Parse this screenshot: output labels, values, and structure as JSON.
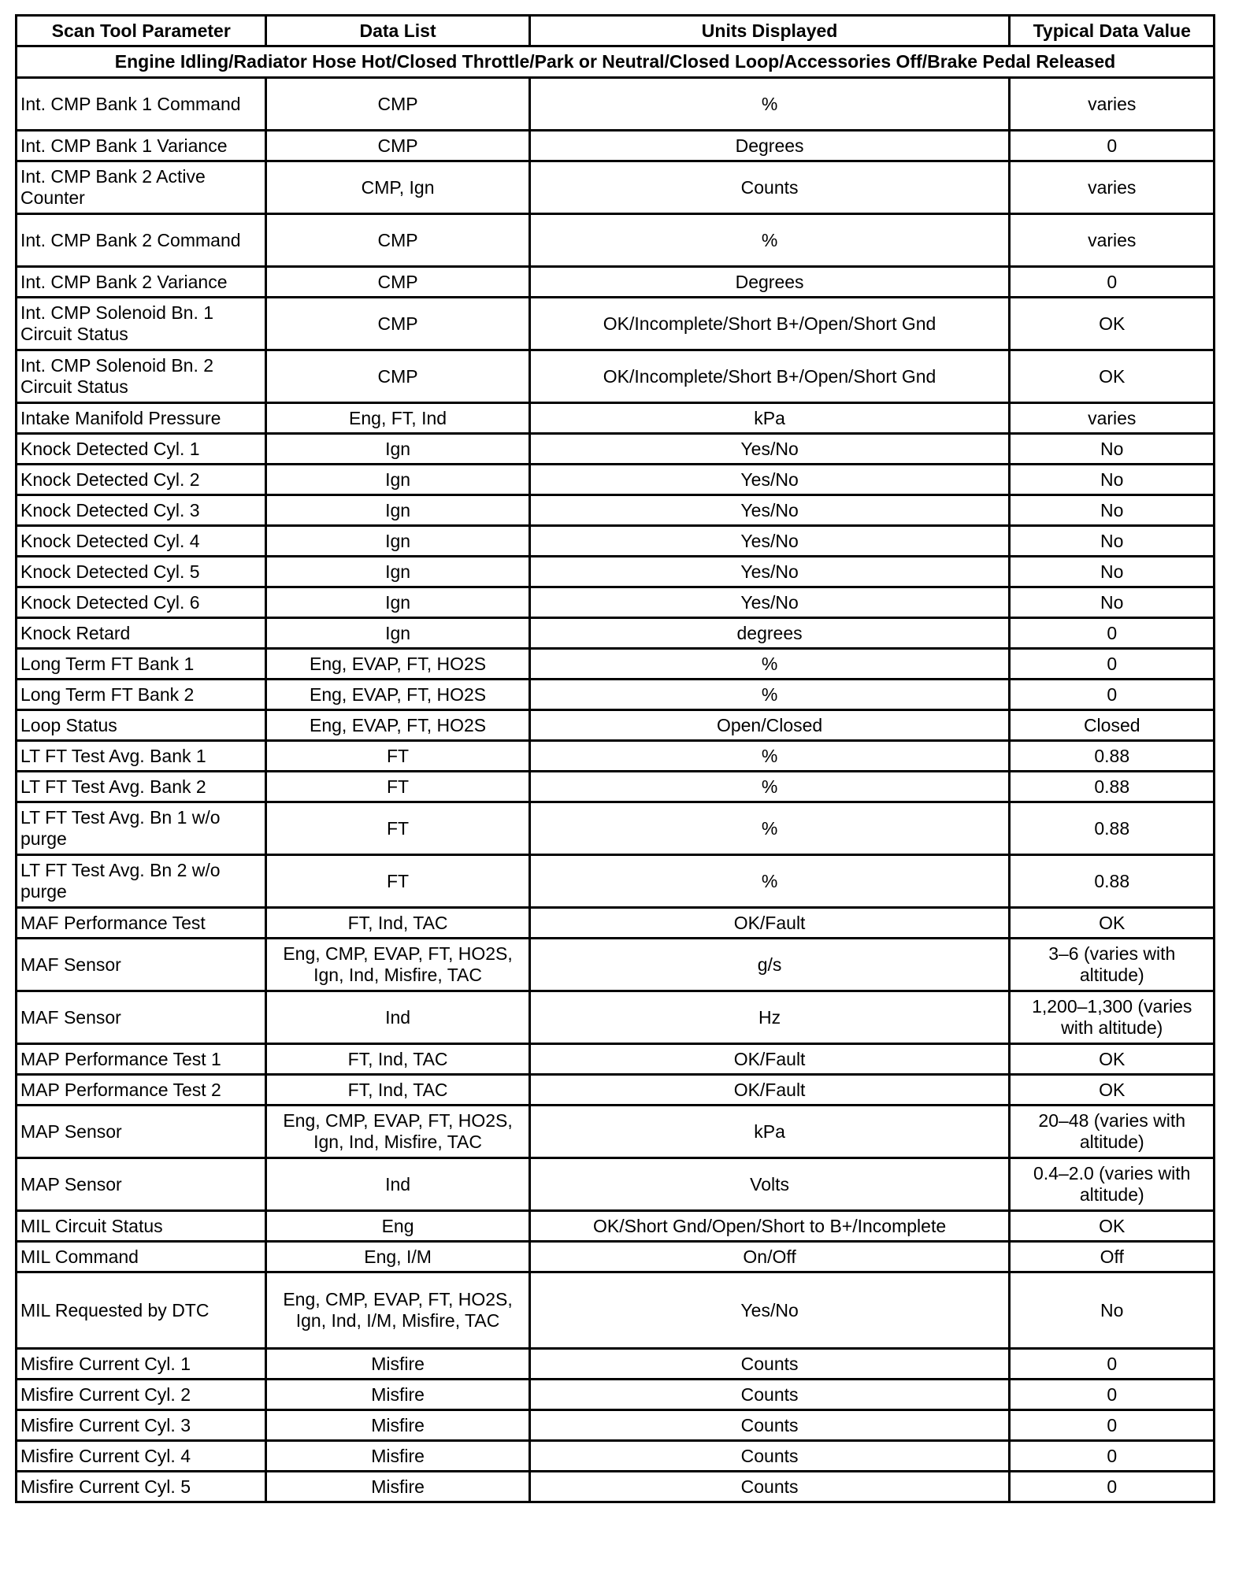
{
  "table": {
    "headers": [
      "Scan Tool Parameter",
      "Data List",
      "Units Displayed",
      "Typical Data Value"
    ],
    "condition": "Engine Idling/Radiator Hose Hot/Closed Throttle/Park or Neutral/Closed Loop/Accessories Off/Brake Pedal Released",
    "rows": [
      [
        "Int. CMP Bank 1 Command",
        "CMP",
        "%",
        "varies"
      ],
      [
        "Int. CMP Bank 1 Variance",
        "CMP",
        "Degrees",
        "0"
      ],
      [
        "Int. CMP Bank 2 Active Counter",
        "CMP, Ign",
        "Counts",
        "varies"
      ],
      [
        "Int. CMP Bank 2 Command",
        "CMP",
        "%",
        "varies"
      ],
      [
        "Int. CMP Bank 2 Variance",
        "CMP",
        "Degrees",
        "0"
      ],
      [
        "Int. CMP Solenoid Bn. 1 Circuit Status",
        "CMP",
        "OK/Incomplete/Short B+/Open/Short Gnd",
        "OK"
      ],
      [
        "Int. CMP Solenoid Bn. 2 Circuit Status",
        "CMP",
        "OK/Incomplete/Short B+/Open/Short Gnd",
        "OK"
      ],
      [
        "Intake Manifold Pressure",
        "Eng, FT, Ind",
        "kPa",
        "varies"
      ],
      [
        "Knock Detected Cyl. 1",
        "Ign",
        "Yes/No",
        "No"
      ],
      [
        "Knock Detected Cyl. 2",
        "Ign",
        "Yes/No",
        "No"
      ],
      [
        "Knock Detected Cyl. 3",
        "Ign",
        "Yes/No",
        "No"
      ],
      [
        "Knock Detected Cyl. 4",
        "Ign",
        "Yes/No",
        "No"
      ],
      [
        "Knock Detected Cyl. 5",
        "Ign",
        "Yes/No",
        "No"
      ],
      [
        "Knock Detected Cyl. 6",
        "Ign",
        "Yes/No",
        "No"
      ],
      [
        "Knock Retard",
        "Ign",
        "degrees",
        "0"
      ],
      [
        "Long Term FT Bank 1",
        "Eng, EVAP, FT, HO2S",
        "%",
        "0"
      ],
      [
        "Long Term FT Bank 2",
        "Eng, EVAP, FT, HO2S",
        "%",
        "0"
      ],
      [
        "Loop Status",
        "Eng, EVAP, FT, HO2S",
        "Open/Closed",
        "Closed"
      ],
      [
        "LT FT Test Avg. Bank 1",
        "FT",
        "%",
        "0.88"
      ],
      [
        "LT FT Test Avg. Bank 2",
        "FT",
        "%",
        "0.88"
      ],
      [
        "LT FT Test Avg. Bn 1 w/o purge",
        "FT",
        "%",
        "0.88"
      ],
      [
        "LT FT Test Avg. Bn 2 w/o purge",
        "FT",
        "%",
        "0.88"
      ],
      [
        "MAF Performance Test",
        "FT, Ind, TAC",
        "OK/Fault",
        "OK"
      ],
      [
        "MAF Sensor",
        "Eng, CMP, EVAP, FT, HO2S, Ign, Ind, Misfire, TAC",
        "g/s",
        "3–6 (varies with altitude)"
      ],
      [
        "MAF Sensor",
        "Ind",
        "Hz",
        "1,200–1,300 (varies with altitude)"
      ],
      [
        "MAP Performance Test 1",
        "FT, Ind, TAC",
        "OK/Fault",
        "OK"
      ],
      [
        "MAP Performance Test 2",
        "FT, Ind, TAC",
        "OK/Fault",
        "OK"
      ],
      [
        "MAP Sensor",
        "Eng, CMP, EVAP, FT, HO2S, Ign, Ind, Misfire, TAC",
        "kPa",
        "20–48 (varies with altitude)"
      ],
      [
        "MAP Sensor",
        "Ind",
        "Volts",
        "0.4–2.0 (varies with altitude)"
      ],
      [
        "MIL Circuit Status",
        "Eng",
        "OK/Short Gnd/Open/Short to B+/Incomplete",
        "OK"
      ],
      [
        "MIL Command",
        "Eng, I/M",
        "On/Off",
        "Off"
      ],
      [
        "MIL Requested by DTC",
        "Eng, CMP, EVAP, FT, HO2S, Ign, Ind, I/M, Misfire, TAC",
        "Yes/No",
        "No"
      ],
      [
        "Misfire Current Cyl. 1",
        "Misfire",
        "Counts",
        "0"
      ],
      [
        "Misfire Current Cyl. 2",
        "Misfire",
        "Counts",
        "0"
      ],
      [
        "Misfire Current Cyl. 3",
        "Misfire",
        "Counts",
        "0"
      ],
      [
        "Misfire Current Cyl. 4",
        "Misfire",
        "Counts",
        "0"
      ],
      [
        "Misfire Current Cyl. 5",
        "Misfire",
        "Counts",
        "0"
      ]
    ]
  }
}
